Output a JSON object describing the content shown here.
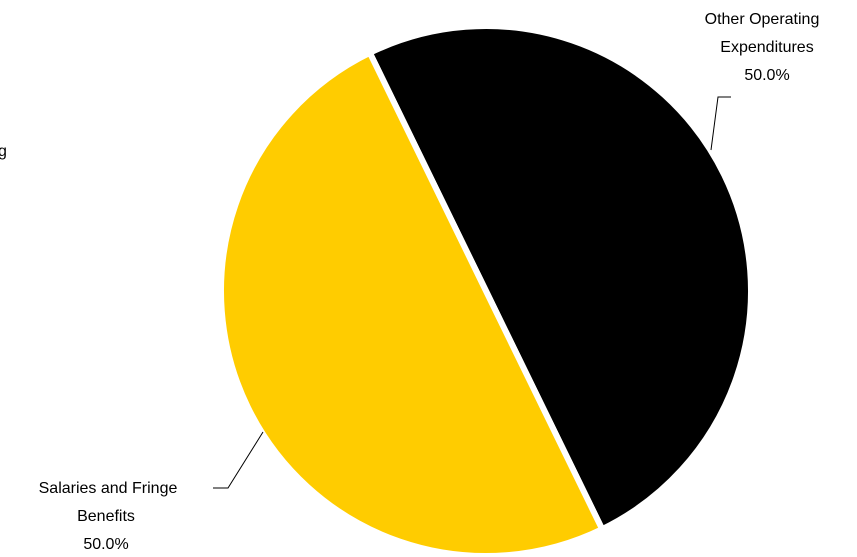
{
  "chart_data": {
    "type": "pie",
    "slices": [
      {
        "label_lines": [
          "Other Operating",
          "Expenditures"
        ],
        "value": 50.0,
        "percent_label": "50.0%",
        "color": "#000000"
      },
      {
        "label_lines": [
          "Salaries and Fringe",
          "Benefits"
        ],
        "value": 50.0,
        "percent_label": "50.0%",
        "color": "#FFCC00"
      }
    ],
    "clipped_left_text": "g",
    "legend": "none"
  }
}
